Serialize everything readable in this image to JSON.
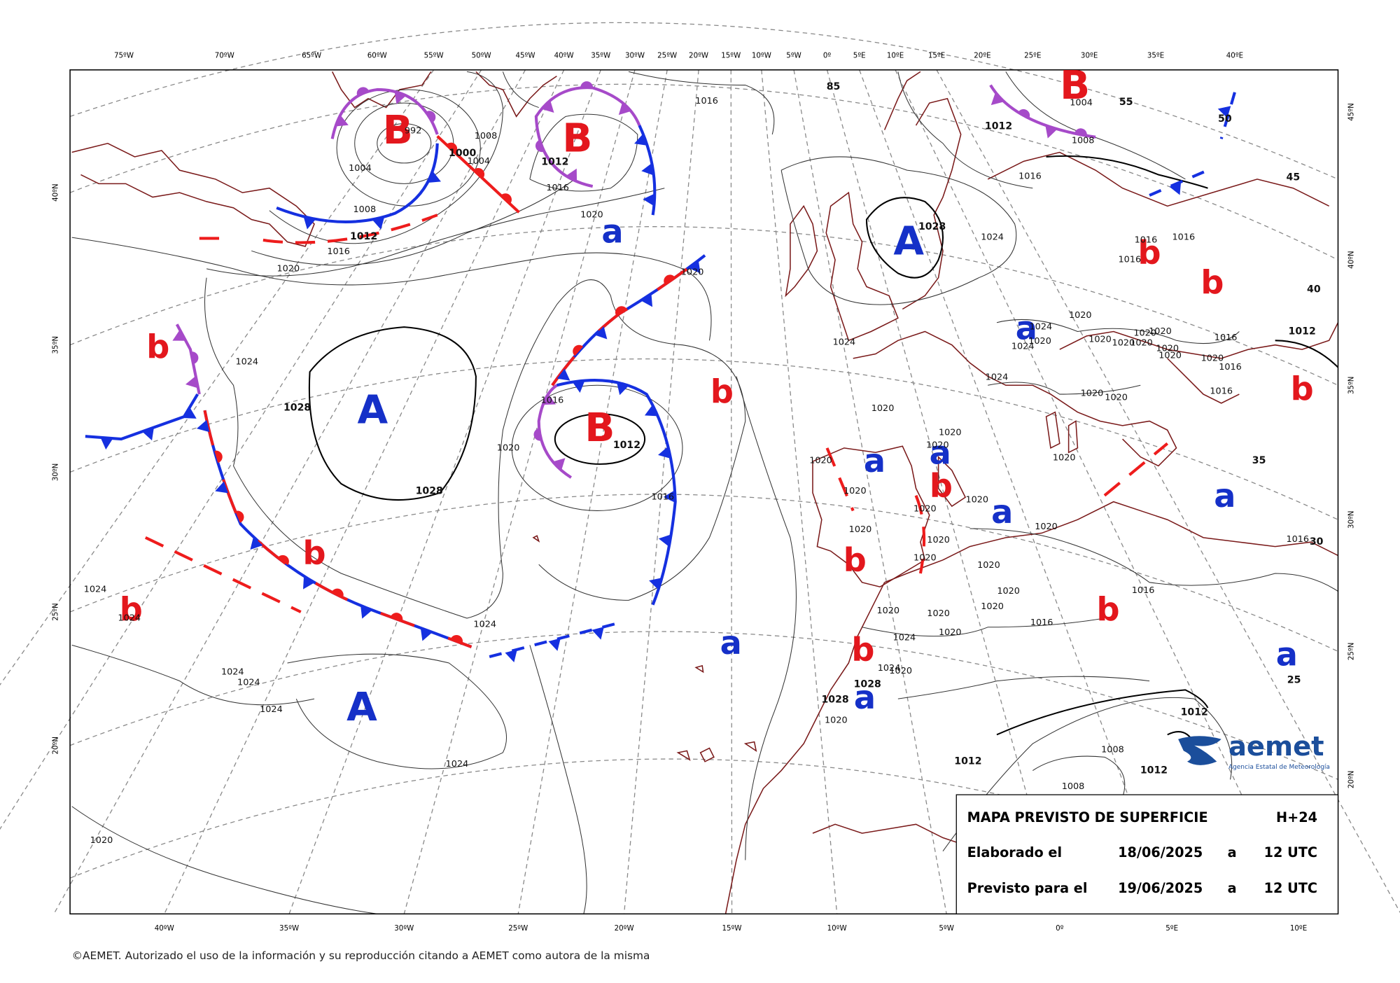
{
  "map": {
    "lon_labels_top": [
      "75ºW",
      "70ºW",
      "65ºW",
      "60ºW",
      "55ºW",
      "50ºW",
      "45ºW",
      "40ºW",
      "35ºW",
      "30ºW",
      "25ºW",
      "20ºW",
      "15ºW",
      "10ºW",
      "5ºW",
      "0º",
      "5ºE",
      "10ºE",
      "15ºE",
      "20ºE",
      "25ºE",
      "30ºE",
      "35ºE",
      "40ºE"
    ],
    "lon_labels_bottom": [
      "40ºW",
      "35ºW",
      "30ºW",
      "25ºW",
      "20ºW",
      "15ºW",
      "10ºW",
      "5ºW",
      "0º",
      "5ºE",
      "10ºE"
    ],
    "lat_labels_left": [
      "40ºN",
      "35ºN",
      "30ºN",
      "25ºN",
      "20ºN"
    ],
    "lat_labels_right": [
      "45ºN",
      "40ºN",
      "35ºN",
      "30ºN",
      "25ºN",
      "20ºN"
    ],
    "pressure_centers": [
      {
        "label": "B",
        "color": "#e3171d"
      },
      {
        "label": "B",
        "color": "#e3171d"
      },
      {
        "label": "B",
        "color": "#e3171d"
      },
      {
        "label": "B",
        "color": "#e3171d"
      },
      {
        "label": "A",
        "color": "#1530c8"
      },
      {
        "label": "A",
        "color": "#1530c8"
      },
      {
        "label": "A",
        "color": "#1530c8"
      },
      {
        "label": "a",
        "color": "#1530c8"
      },
      {
        "label": "a",
        "color": "#1530c8"
      },
      {
        "label": "a",
        "color": "#1530c8"
      },
      {
        "label": "a",
        "color": "#1530c8"
      },
      {
        "label": "a",
        "color": "#1530c8"
      },
      {
        "label": "a",
        "color": "#1530c8"
      },
      {
        "label": "a",
        "color": "#1530c8"
      },
      {
        "label": "a",
        "color": "#1530c8"
      },
      {
        "label": "a",
        "color": "#1530c8"
      },
      {
        "label": "b",
        "color": "#e3171d"
      },
      {
        "label": "b",
        "color": "#e3171d"
      },
      {
        "label": "b",
        "color": "#e3171d"
      },
      {
        "label": "b",
        "color": "#e3171d"
      },
      {
        "label": "b",
        "color": "#e3171d"
      },
      {
        "label": "b",
        "color": "#e3171d"
      },
      {
        "label": "b",
        "color": "#e3171d"
      },
      {
        "label": "b",
        "color": "#e3171d"
      },
      {
        "label": "b",
        "color": "#e3171d"
      },
      {
        "label": "b",
        "color": "#e3171d"
      },
      {
        "label": "b",
        "color": "#e3171d"
      }
    ],
    "isobar_labels": [
      "1016",
      "1008",
      "1004",
      "1000",
      "992",
      "1004",
      "1008",
      "1012",
      "1016",
      "1020",
      "1012",
      "1016",
      "1020",
      "1020",
      "1024",
      "1028",
      "1028",
      "1016",
      "1020",
      "1012",
      "1016",
      "1024",
      "1024",
      "1024",
      "1024",
      "1024",
      "1024",
      "1024",
      "1020",
      "1028",
      "1024",
      "1024",
      "1020",
      "1020",
      "1020",
      "1020",
      "1020",
      "1020",
      "1020",
      "1020",
      "1020",
      "1020",
      "1020",
      "1020",
      "1020",
      "1020",
      "1020",
      "1020",
      "1024",
      "1020",
      "1024",
      "1020",
      "1028",
      "1028",
      "1020",
      "1016",
      "1016",
      "1016",
      "1012",
      "1008",
      "1012",
      "1008",
      "1012",
      "1016",
      "1012",
      "1004",
      "1008",
      "85",
      "55",
      "50",
      "45",
      "40",
      "35",
      "30",
      "25",
      "1016",
      "1016",
      "1016",
      "1020",
      "1024",
      "1020",
      "1024",
      "1020",
      "1020",
      "1020",
      "1020",
      "1020",
      "1020",
      "1020",
      "1016",
      "1012",
      "1020",
      "1016",
      "1016",
      "1024",
      "1020",
      "1020",
      "1020"
    ]
  },
  "info_box": {
    "title": "MAPA PREVISTO DE SUPERFICIE",
    "lead": "H+24",
    "rows": [
      [
        "Elaborado el",
        "18/06/2025",
        "a",
        "12 UTC"
      ],
      [
        "Previsto para el",
        "19/06/2025",
        "a",
        "12 UTC"
      ]
    ]
  },
  "logo": {
    "name": "aemet",
    "subtitle": "Agencia Estatal de Meteorología"
  },
  "copyright": "©AEMET. Autorizado el uso de la información y su reproducción citando a AEMET como autora de la misma"
}
